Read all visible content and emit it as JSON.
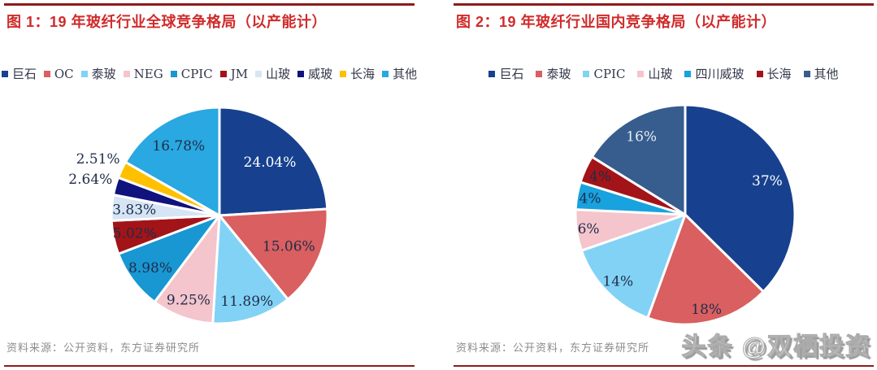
{
  "watermark": {
    "text": "头条 @双栖投资"
  },
  "figure1": {
    "source_note": "资料来源：公开资料，东方证券研究所"
  },
  "figure2": {
    "source_note": "资料来源：公开资料，东方证券研究所"
  },
  "chart_data": [
    {
      "type": "pie",
      "title": "图 1：19 年玻纤行业全球竞争格局（以产能计）",
      "unit": "%",
      "legend_position": "top",
      "start_angle_deg": 0,
      "direction": "clockwise",
      "slices": [
        {
          "name": "巨石",
          "value": 24.04,
          "label": "24.04%",
          "color": "#17418F",
          "label_color": "#FFFFFF",
          "label_r": 0.68
        },
        {
          "name": "OC",
          "value": 15.06,
          "label": "15.06%",
          "color": "#D95F60",
          "label_color": "#1F2C49",
          "label_r": 0.7
        },
        {
          "name": "泰玻",
          "value": 11.89,
          "label": "11.89%",
          "color": "#82D2F5",
          "label_color": "#1F2C49",
          "label_r": 0.83
        },
        {
          "name": "NEG",
          "value": 9.25,
          "label": "9.25%",
          "color": "#F4C5CC",
          "label_color": "#1F2C49",
          "label_r": 0.83
        },
        {
          "name": "CPIC",
          "value": 8.98,
          "label": "8.98%",
          "color": "#1897D3",
          "label_color": "#1F2C49",
          "label_r": 0.8
        },
        {
          "name": "JM",
          "value": 5.02,
          "label": "5.02%",
          "color": "#A31418",
          "label_color": "#1F2C49",
          "label_r": 0.8
        },
        {
          "name": "山玻",
          "value": 3.83,
          "label": "3.83%",
          "color": "#D5E5F5",
          "label_color": "#1F2C49",
          "label_r": 0.79
        },
        {
          "name": "威玻",
          "value": 2.64,
          "label": "2.64%",
          "color": "#10127E",
          "label_color": "#1F2C49",
          "label_r": 1.24
        },
        {
          "name": "长海",
          "value": 2.51,
          "label": "2.51%",
          "color": "#FFC000",
          "label_color": "#1F2C49",
          "label_r": 1.24
        },
        {
          "name": "其他",
          "value": 16.78,
          "label": "16.78%",
          "color": "#29A8E1",
          "label_color": "#1F2C49",
          "label_r": 0.75
        }
      ]
    },
    {
      "type": "pie",
      "title": "图 2：19 年玻纤行业国内竞争格局（以产能计）",
      "unit": "%",
      "legend_position": "top",
      "start_angle_deg": 0,
      "direction": "clockwise",
      "slices": [
        {
          "name": "巨石",
          "value": 37,
          "label": "37%",
          "color": "#17418F",
          "label_color": "#FFFFFF",
          "label_r": 0.81
        },
        {
          "name": "泰玻",
          "value": 18,
          "label": "18%",
          "color": "#D95F60",
          "label_color": "#1F2C49",
          "label_r": 0.88
        },
        {
          "name": "CPIC",
          "value": 14,
          "label": "14%",
          "color": "#82D2F5",
          "label_color": "#1F2C49",
          "label_r": 0.86
        },
        {
          "name": "山玻",
          "value": 6,
          "label": "6%",
          "color": "#F4C5CC",
          "label_color": "#1F2C49",
          "label_r": 0.89
        },
        {
          "name": "四川威玻",
          "value": 4,
          "label": "4%",
          "color": "#18A2DE",
          "label_color": "#1F2C49",
          "label_r": 0.88
        },
        {
          "name": "长海",
          "value": 4,
          "label": "4%",
          "color": "#A31418",
          "label_color": "#1F2C49",
          "label_r": 0.85
        },
        {
          "name": "其他",
          "value": 16,
          "label": "16%",
          "color": "#365D8D",
          "label_color": "#E9EDF4",
          "label_r": 0.82
        }
      ]
    }
  ]
}
